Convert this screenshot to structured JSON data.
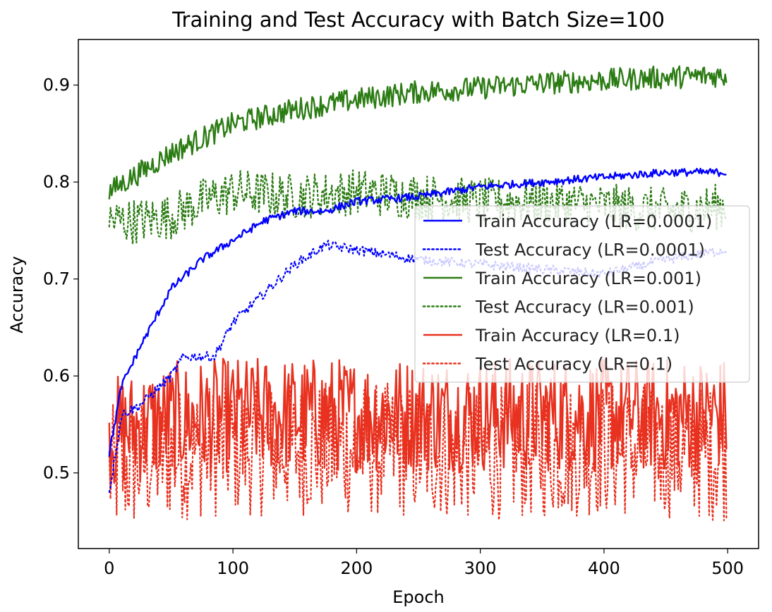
{
  "chart_data": {
    "type": "line",
    "title": "Training and Test Accuracy with Batch Size=100",
    "xlabel": "Epoch",
    "ylabel": "Accuracy",
    "xlim": [
      -25,
      525
    ],
    "ylim": [
      0.422,
      0.947
    ],
    "xticks": [
      0,
      100,
      200,
      300,
      400,
      500
    ],
    "yticks": [
      0.5,
      0.6,
      0.7,
      0.8,
      0.9
    ],
    "grid": false,
    "legend": "center-right",
    "series": [
      {
        "name": "Train Accuracy (LR=0.0001)",
        "color": "#0000ff",
        "style": "solid",
        "x": [
          0,
          10,
          25,
          50,
          75,
          100,
          125,
          150,
          175,
          200,
          250,
          300,
          350,
          400,
          450,
          499
        ],
        "y": [
          0.52,
          0.59,
          0.63,
          0.69,
          0.72,
          0.74,
          0.76,
          0.77,
          0.77,
          0.78,
          0.785,
          0.795,
          0.8,
          0.805,
          0.81,
          0.81
        ],
        "noise": 0.004
      },
      {
        "name": "Test Accuracy (LR=0.0001)",
        "color": "#0000ff",
        "style": "dotted",
        "x": [
          0,
          10,
          25,
          50,
          60,
          85,
          100,
          125,
          150,
          175,
          200,
          250,
          300,
          350,
          400,
          450,
          499
        ],
        "y": [
          0.48,
          0.56,
          0.57,
          0.6,
          0.62,
          0.62,
          0.655,
          0.685,
          0.715,
          0.735,
          0.73,
          0.72,
          0.715,
          0.71,
          0.705,
          0.72,
          0.73
        ],
        "noise": 0.005
      },
      {
        "name": "Train Accuracy (LR=0.001)",
        "color": "#2c7c14",
        "style": "solid",
        "x": [
          0,
          25,
          50,
          100,
          150,
          200,
          250,
          300,
          350,
          400,
          450,
          499
        ],
        "y": [
          0.79,
          0.81,
          0.83,
          0.86,
          0.875,
          0.885,
          0.893,
          0.897,
          0.902,
          0.905,
          0.908,
          0.91
        ],
        "noise": 0.012
      },
      {
        "name": "Test Accuracy (LR=0.001)",
        "color": "#2c7c14",
        "style": "dotted",
        "x": [
          0,
          25,
          50,
          75,
          100,
          150,
          200,
          250,
          300,
          350,
          400,
          450,
          499
        ],
        "y": [
          0.76,
          0.76,
          0.765,
          0.78,
          0.79,
          0.785,
          0.79,
          0.785,
          0.78,
          0.78,
          0.775,
          0.77,
          0.775
        ],
        "noise": 0.024
      },
      {
        "name": "Train Accuracy (LR=0.1)",
        "color": "#e8311f",
        "style": "solid",
        "x": [
          0,
          50,
          100,
          200,
          300,
          400,
          499
        ],
        "y": [
          0.54,
          0.555,
          0.56,
          0.56,
          0.56,
          0.56,
          0.56
        ],
        "noise": 0.06
      },
      {
        "name": "Test Accuracy (LR=0.1)",
        "color": "#e8311f",
        "style": "dotted",
        "x": [
          0,
          50,
          100,
          200,
          300,
          400,
          499
        ],
        "y": [
          0.5,
          0.52,
          0.525,
          0.525,
          0.52,
          0.525,
          0.52
        ],
        "noise": 0.07
      }
    ]
  }
}
